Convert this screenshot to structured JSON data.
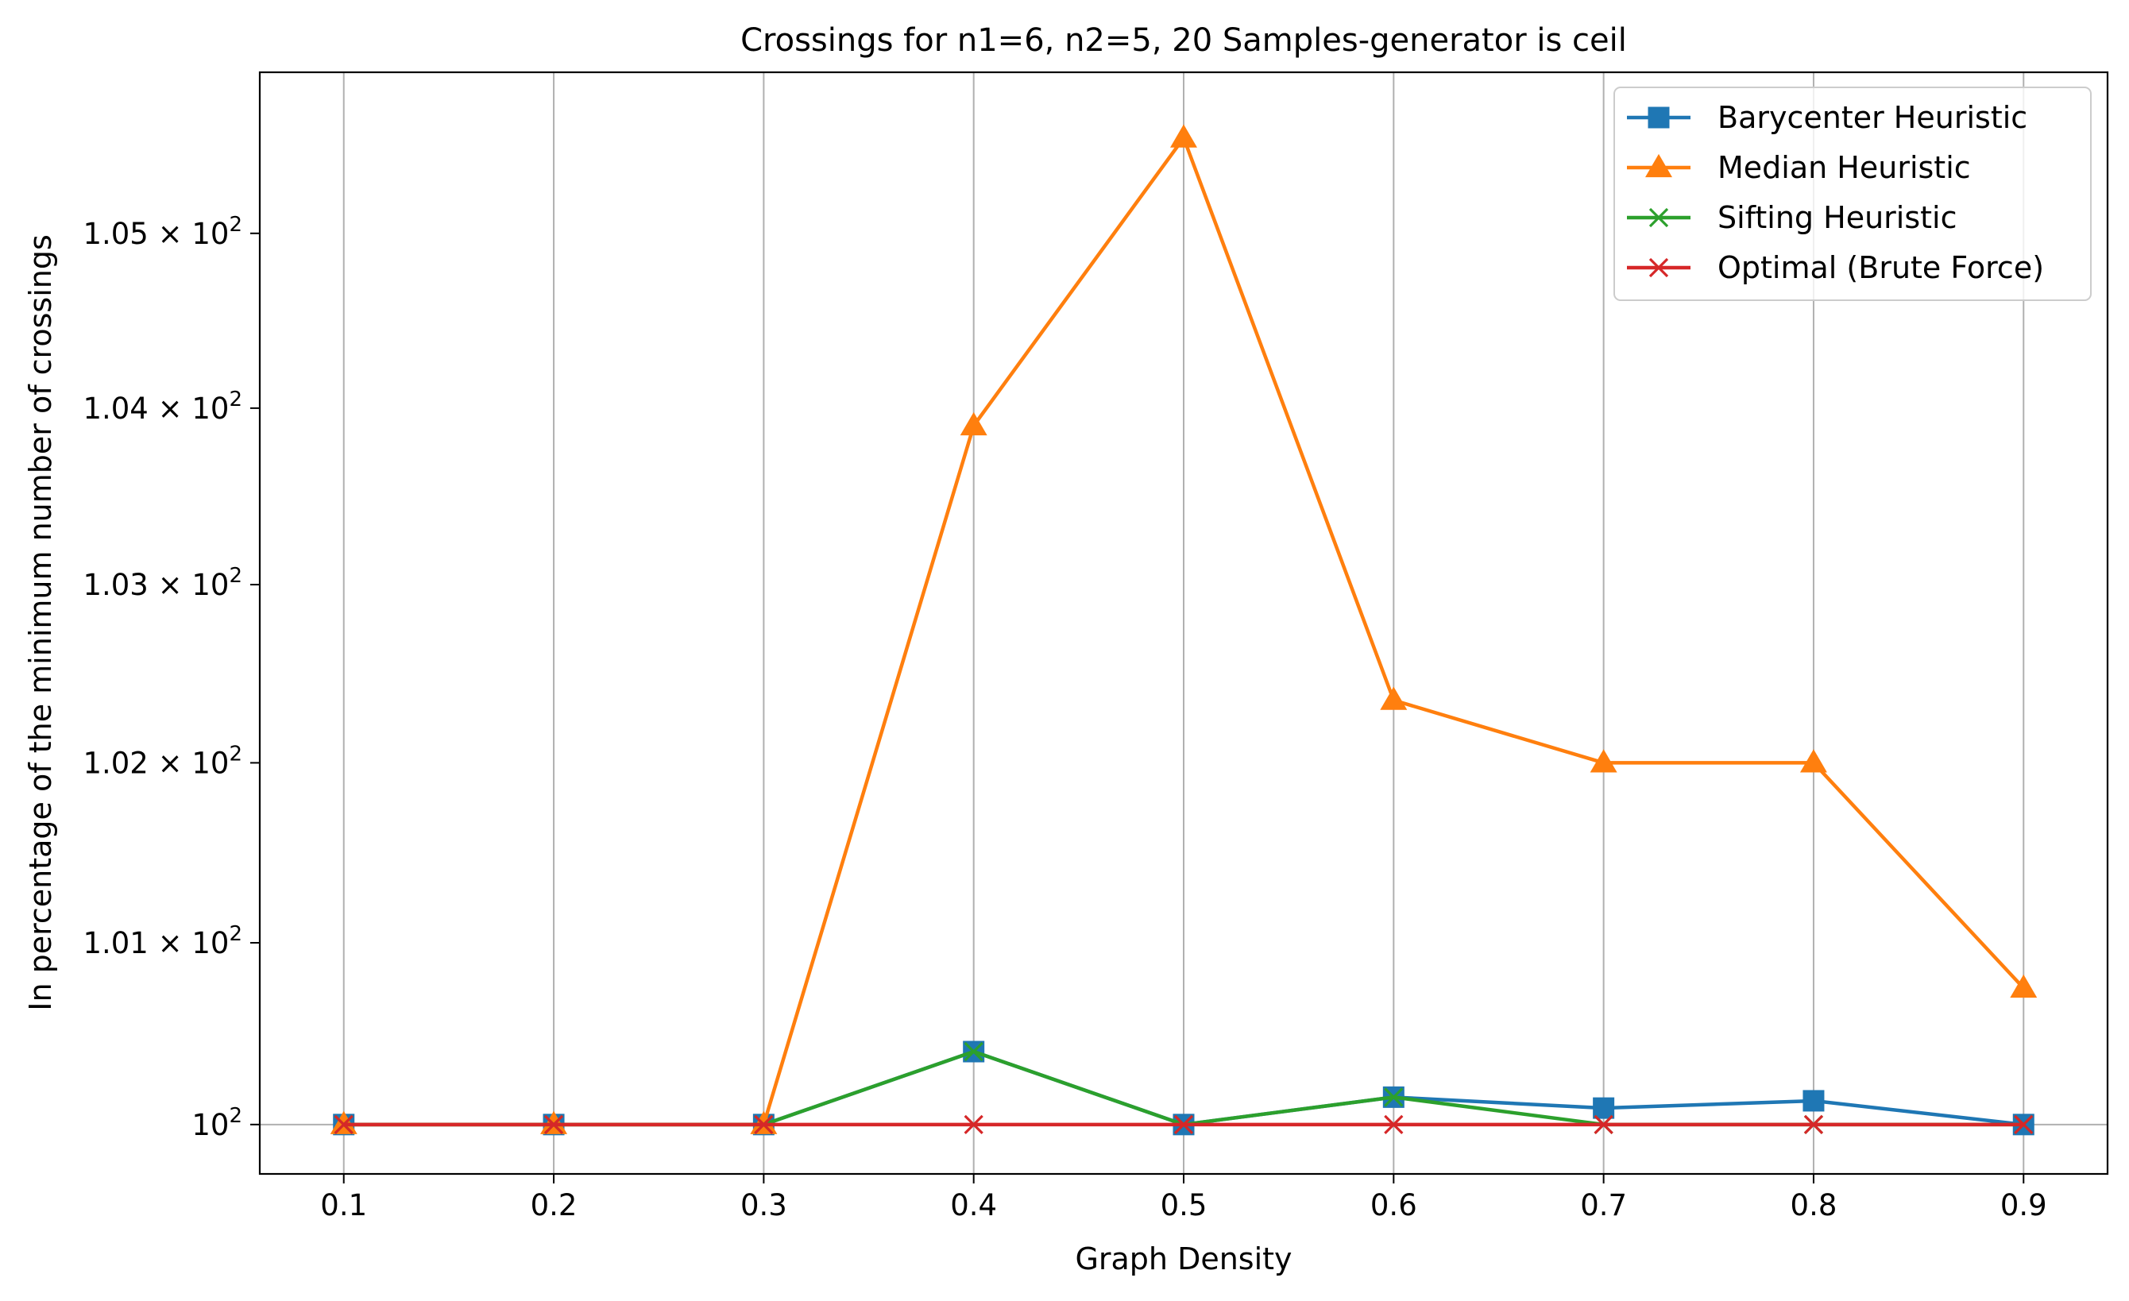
{
  "chart_data": {
    "type": "line",
    "title": "Crossings for n1=6, n2=5, 20 Samples-generator is ceil",
    "xlabel": "Graph Density",
    "ylabel": "In percentage of the minimum number of crossings",
    "x": [
      0.1,
      0.2,
      0.3,
      0.4,
      0.5,
      0.6,
      0.7,
      0.8,
      0.9
    ],
    "xticks": [
      "0.1",
      "0.2",
      "0.3",
      "0.4",
      "0.5",
      "0.6",
      "0.7",
      "0.8",
      "0.9"
    ],
    "xlim": [
      0.06,
      0.94
    ],
    "yscale": "log",
    "ylim": [
      99.73,
      105.93
    ],
    "yticks": [
      {
        "value": 100,
        "base": "10",
        "exp": "2"
      },
      {
        "value": 101,
        "mant": "1.01",
        "base": "10",
        "exp": "2"
      },
      {
        "value": 102,
        "mant": "1.02",
        "base": "10",
        "exp": "2"
      },
      {
        "value": 103,
        "mant": "1.03",
        "base": "10",
        "exp": "2"
      },
      {
        "value": 104,
        "mant": "1.04",
        "base": "10",
        "exp": "2"
      },
      {
        "value": 105,
        "mant": "1.05",
        "base": "10",
        "exp": "2"
      }
    ],
    "grid": "x-major, y at 100",
    "legend_position": "top-right",
    "series": [
      {
        "name": "Barycenter Heuristic",
        "color": "#1f77b4",
        "marker": "square",
        "values": [
          100,
          100,
          100,
          100.4,
          100,
          100.15,
          100.09,
          100.13,
          100
        ]
      },
      {
        "name": "Median Heuristic",
        "color": "#ff7f0e",
        "marker": "triangle",
        "values": [
          100,
          100,
          100,
          103.9,
          105.55,
          102.35,
          102.0,
          102.0,
          100.75
        ]
      },
      {
        "name": "Sifting Heuristic",
        "color": "#2ca02c",
        "marker": "x",
        "values": [
          100,
          100,
          100,
          100.4,
          100,
          100.15,
          100,
          100,
          100
        ]
      },
      {
        "name": "Optimal (Brute Force)",
        "color": "#d62728",
        "marker": "x",
        "values": [
          100,
          100,
          100,
          100,
          100,
          100,
          100,
          100,
          100
        ]
      }
    ]
  }
}
